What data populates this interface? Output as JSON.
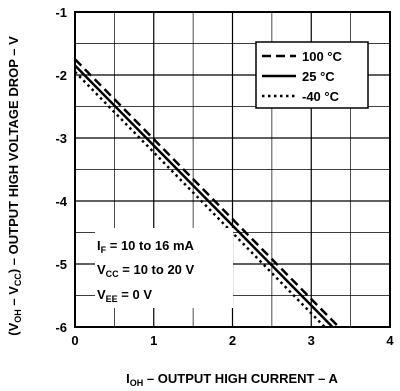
{
  "chart_data": {
    "type": "line",
    "title": "",
    "xlabel": "I_OH – OUTPUT HIGH CURRENT – A",
    "xlabel_parts": {
      "main": "I",
      "sub": "OH",
      "rest": " – OUTPUT HIGH CURRENT – A"
    },
    "ylabel": "(V_OH – V_CC) – OUTPUT HIGH VOLTAGE DROP – V",
    "ylabel_parts": {
      "p1": "(V",
      "s1": "OH",
      "p2": " – V",
      "s2": "CC",
      "p3": ") – OUTPUT HIGH VOLTAGE DROP – V"
    },
    "xlim": [
      0,
      4
    ],
    "ylim": [
      -6,
      -1
    ],
    "x_ticks": [
      0,
      1,
      2,
      3,
      4
    ],
    "y_ticks": [
      -1,
      -2,
      -3,
      -4,
      -5,
      -6
    ],
    "x_tick_labels": [
      "0",
      "1",
      "2",
      "3",
      "4"
    ],
    "y_tick_labels": [
      "-1",
      "-2",
      "-3",
      "-4",
      "-5",
      "-6"
    ],
    "grid": true,
    "legend_position": "top-right",
    "series": [
      {
        "name": "100 °C",
        "style": "dashed",
        "x": [
          0,
          3.35
        ],
        "y": [
          -1.75,
          -6.0
        ]
      },
      {
        "name": "25 °C",
        "style": "solid",
        "x": [
          0,
          3.27
        ],
        "y": [
          -1.85,
          -6.0
        ]
      },
      {
        "name": "-40 °C",
        "style": "dotted",
        "x": [
          0,
          3.17
        ],
        "y": [
          -1.95,
          -6.0
        ]
      }
    ],
    "annotations": [
      {
        "main": "I",
        "sub": "F",
        "rest": " = 10 to 16 mA"
      },
      {
        "main": "V",
        "sub": "CC",
        "rest": " = 10 to 20 V"
      },
      {
        "main": "V",
        "sub": "EE",
        "rest": " = 0 V"
      }
    ]
  }
}
